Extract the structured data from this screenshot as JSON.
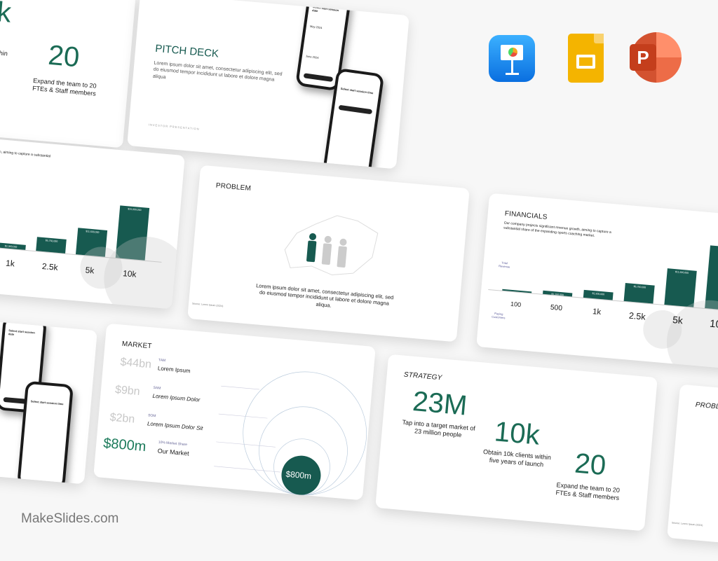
{
  "brand": "MakeSlides.com",
  "apps": [
    {
      "name": "Keynote",
      "icon": "keynote-icon",
      "color": "#1a8cf0"
    },
    {
      "name": "Google Slides",
      "icon": "google-slides-icon",
      "color": "#f4b400"
    },
    {
      "name": "PowerPoint",
      "icon": "powerpoint-icon",
      "color": "#d24726",
      "letter": "P"
    }
  ],
  "accent": "#175a50",
  "strategy": {
    "title": "STRATEGY",
    "stats": [
      {
        "value": "23M",
        "caption": "Tap into a target market of 23 million people"
      },
      {
        "value": "10k",
        "caption": "Obtain 10k clients within five years of launch"
      },
      {
        "value": "20",
        "caption": "Expand the team to 20 FTEs & Staff members"
      }
    ],
    "partial_value": "k",
    "partial_caption": "s within\nnch"
  },
  "pitch": {
    "title": "PITCH DECK",
    "body": "Lorem ipsum dolor sit amet, consectetur adipiscing elit, sed do eiusmod tempor incididunt ut labore et dolore magna aliqua",
    "footer": "INVESTOR PRESENTATION",
    "phone1_title": "Select start session date",
    "phone1_month1": "May 2024",
    "phone1_month2": "June 2024",
    "phone2_title": "Select start session time"
  },
  "financials": {
    "title": "FINANCIALS",
    "body": "Our company projects significant revenue growth, aiming to capture a substantial share of the expanding sports coaching market.",
    "revenue_label": "Total Revenue",
    "customers_label": "Paying Customers",
    "bars": [
      {
        "customers": "100",
        "revenue": "",
        "level": 1
      },
      {
        "customers": "500",
        "revenue": "$1,150,000",
        "level": 6
      },
      {
        "customers": "1k",
        "revenue": "$2,300,000",
        "level": 12
      },
      {
        "customers": "2.5k",
        "revenue": "$5,750,000",
        "level": 29
      },
      {
        "customers": "5k",
        "revenue": "$11,500,000",
        "level": 58
      },
      {
        "customers": "10k",
        "revenue": "$20,000,000",
        "level": 100
      }
    ]
  },
  "problem": {
    "title": "PROBLEM",
    "body": "Lorem ipsum dolor sit amet, consectetur adipiscing elit, sed do eiusmod tempor incididunt ut labore et dolore magna aliqua.",
    "source": "Source: Lorem Ipsum (2024)"
  },
  "market": {
    "title": "MARKET",
    "rows": [
      {
        "value": "$44bn",
        "tag": "TAM",
        "name": "Lorem Ipsum"
      },
      {
        "value": "$9bn",
        "tag": "SAM",
        "name": "Lorem Ipsum Dolor"
      },
      {
        "value": "$2bn",
        "tag": "SOM",
        "name": "Lorem Ipsum Dolor Sit"
      },
      {
        "value": "$800m",
        "tag": "10% Market Share",
        "name": "Our Market"
      }
    ],
    "circle_value": "$800m"
  }
}
